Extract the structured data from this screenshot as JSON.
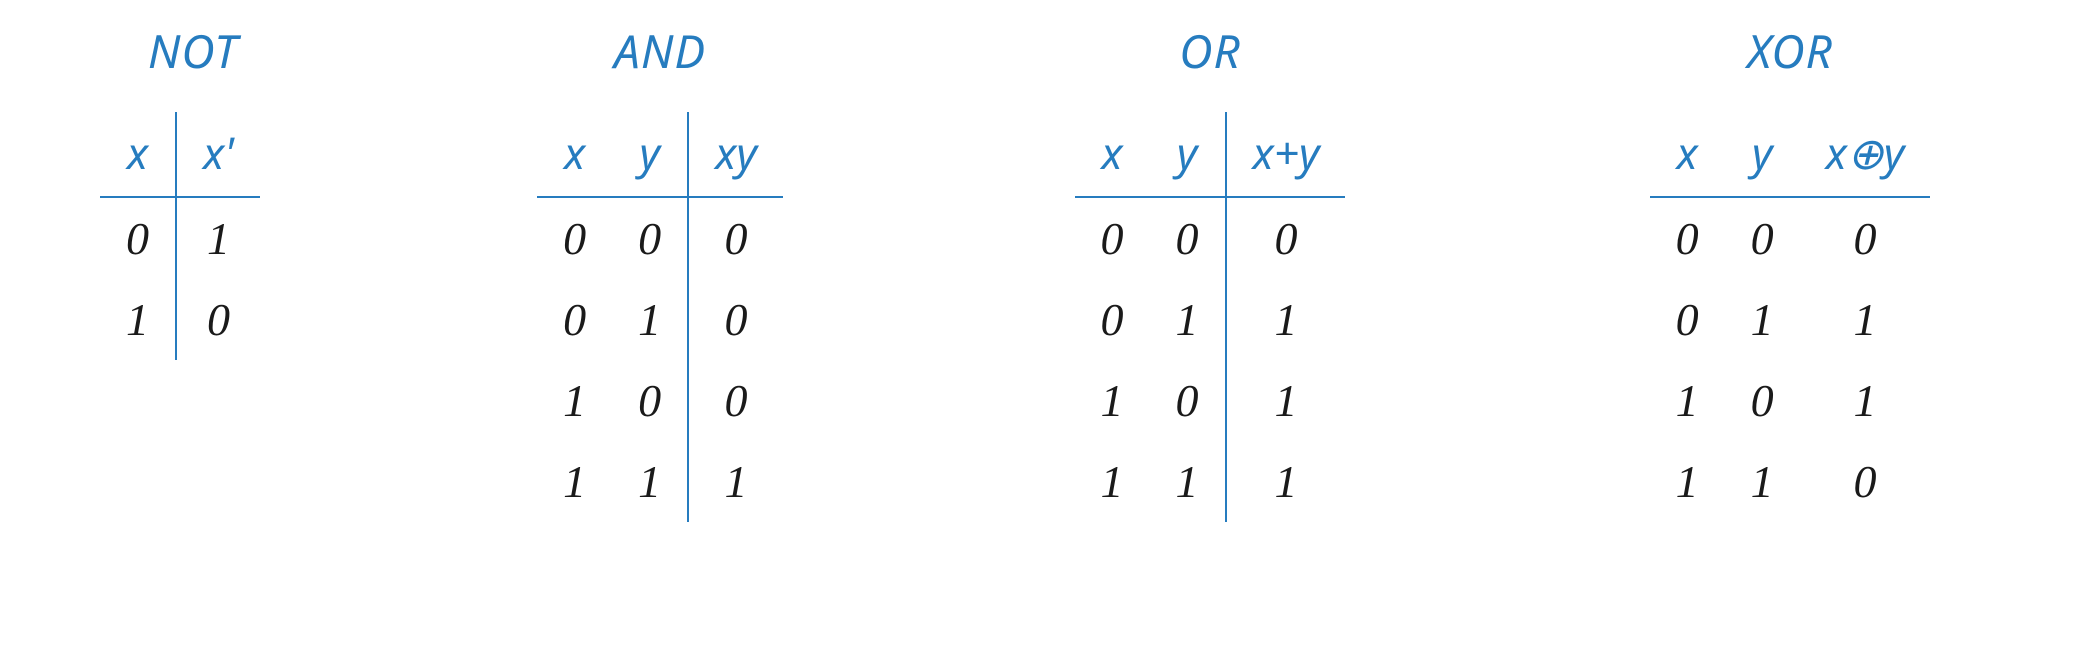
{
  "colors": {
    "accent": "#267cbf",
    "text": "#1a1a1a",
    "background": "#ffffff",
    "rule": "#267cbf"
  },
  "typography": {
    "title_fontsize_pt": 35,
    "header_fontsize_pt": 33,
    "cell_fontsize_pt": 35,
    "style": "italic"
  },
  "tables": [
    {
      "id": "not",
      "title": "NOT",
      "columns": [
        "x",
        "x'"
      ],
      "divider_before_col": 1,
      "rows": [
        [
          "0",
          "1"
        ],
        [
          "1",
          "0"
        ]
      ]
    },
    {
      "id": "and",
      "title": "AND",
      "columns": [
        "x",
        "y",
        "xy"
      ],
      "divider_before_col": 2,
      "rows": [
        [
          "0",
          "0",
          "0"
        ],
        [
          "0",
          "1",
          "0"
        ],
        [
          "1",
          "0",
          "0"
        ],
        [
          "1",
          "1",
          "1"
        ]
      ]
    },
    {
      "id": "or",
      "title": "OR",
      "columns": [
        "x",
        "y",
        "x+y"
      ],
      "divider_before_col": 2,
      "rows": [
        [
          "0",
          "0",
          "0"
        ],
        [
          "0",
          "1",
          "1"
        ],
        [
          "1",
          "0",
          "1"
        ],
        [
          "1",
          "1",
          "1"
        ]
      ]
    },
    {
      "id": "xor",
      "title": "XOR",
      "columns": [
        "x",
        "y",
        "x⊕y"
      ],
      "divider_before_col": null,
      "rows": [
        [
          "0",
          "0",
          "0"
        ],
        [
          "0",
          "1",
          "1"
        ],
        [
          "1",
          "0",
          "1"
        ],
        [
          "1",
          "1",
          "0"
        ]
      ]
    }
  ]
}
